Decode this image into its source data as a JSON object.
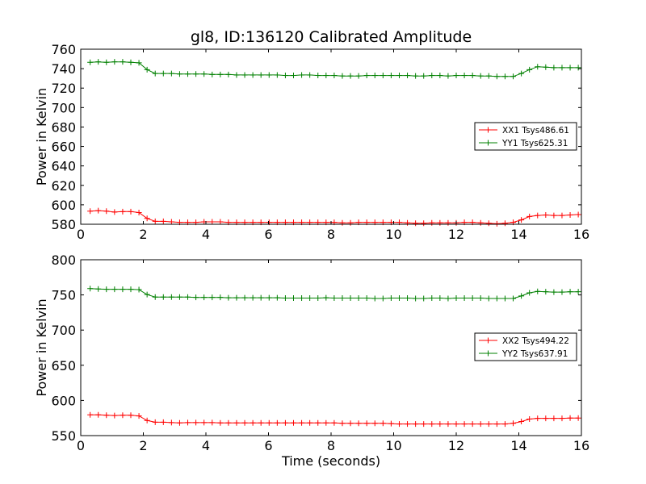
{
  "chart_data": [
    {
      "type": "line",
      "title": "gl8, ID:136120 Calibrated Amplitude",
      "xlabel": "",
      "ylabel": "Power in Kelvin",
      "xlim": [
        0,
        16
      ],
      "ylim": [
        580,
        760
      ],
      "xticks": [
        0,
        2,
        4,
        6,
        8,
        10,
        12,
        14,
        16
      ],
      "yticks": [
        580,
        600,
        620,
        640,
        660,
        680,
        700,
        720,
        740,
        760
      ],
      "x_tick_labels": [
        "0",
        "2",
        "4",
        "6",
        "8",
        "10",
        "12",
        "14",
        "16"
      ],
      "y_tick_labels": [
        "580",
        "600",
        "620",
        "640",
        "660",
        "680",
        "700",
        "720",
        "740",
        "760"
      ],
      "grid": false,
      "legend_position": "center-right",
      "x": [
        0.3,
        0.56,
        0.82,
        1.08,
        1.34,
        1.6,
        1.86,
        2.12,
        2.38,
        2.64,
        2.9,
        3.16,
        3.42,
        3.68,
        3.94,
        4.2,
        4.46,
        4.72,
        4.98,
        5.24,
        5.5,
        5.76,
        6.02,
        6.28,
        6.54,
        6.8,
        7.06,
        7.32,
        7.58,
        7.84,
        8.1,
        8.36,
        8.62,
        8.88,
        9.14,
        9.4,
        9.66,
        9.92,
        10.18,
        10.44,
        10.7,
        10.96,
        11.22,
        11.48,
        11.74,
        12.0,
        12.26,
        12.52,
        12.78,
        13.04,
        13.3,
        13.56,
        13.82,
        14.08,
        14.34,
        14.6,
        14.86,
        15.12,
        15.38,
        15.64,
        15.9
      ],
      "series": [
        {
          "name": "XX1 Tsys486.61",
          "color": "#ff0000",
          "values": [
            593.5,
            594.0,
            593.5,
            592.5,
            593.0,
            593.0,
            592.0,
            586.0,
            583.0,
            583.0,
            582.5,
            582.0,
            582.0,
            582.0,
            582.5,
            582.5,
            582.5,
            582.0,
            582.0,
            582.0,
            582.0,
            582.0,
            582.0,
            582.0,
            582.0,
            582.0,
            582.0,
            582.0,
            582.0,
            582.0,
            582.0,
            581.5,
            581.5,
            582.0,
            582.0,
            582.0,
            582.0,
            582.0,
            582.0,
            581.5,
            581.0,
            581.0,
            581.5,
            581.5,
            581.5,
            581.5,
            582.0,
            582.0,
            581.5,
            581.0,
            580.5,
            581.0,
            582.0,
            584.5,
            588.0,
            589.0,
            589.5,
            589.0,
            589.0,
            589.5,
            590.0
          ]
        },
        {
          "name": "YY1 Tsys625.31",
          "color": "#008000",
          "values": [
            746.5,
            747.0,
            746.5,
            747.0,
            747.0,
            746.5,
            746.0,
            739.0,
            735.0,
            735.0,
            735.0,
            734.5,
            734.5,
            734.5,
            734.5,
            734.0,
            734.0,
            734.0,
            733.5,
            733.5,
            733.5,
            733.5,
            733.5,
            733.5,
            733.0,
            733.0,
            733.5,
            733.5,
            733.0,
            733.0,
            733.0,
            732.5,
            732.5,
            732.5,
            733.0,
            733.0,
            733.0,
            733.0,
            733.0,
            733.0,
            732.5,
            732.5,
            733.0,
            733.0,
            732.5,
            733.0,
            733.0,
            733.0,
            732.5,
            732.5,
            732.0,
            732.0,
            732.0,
            735.0,
            739.0,
            742.0,
            741.5,
            741.0,
            741.0,
            741.0,
            741.0
          ]
        }
      ]
    },
    {
      "type": "line",
      "title": "",
      "xlabel": "Time (seconds)",
      "ylabel": "Power in Kelvin",
      "xlim": [
        0,
        16
      ],
      "ylim": [
        550,
        800
      ],
      "xticks": [
        0,
        2,
        4,
        6,
        8,
        10,
        12,
        14,
        16
      ],
      "yticks": [
        550,
        600,
        650,
        700,
        750,
        800
      ],
      "x_tick_labels": [
        "0",
        "2",
        "4",
        "6",
        "8",
        "10",
        "12",
        "14",
        "16"
      ],
      "y_tick_labels": [
        "550",
        "600",
        "650",
        "700",
        "750",
        "800"
      ],
      "grid": false,
      "legend_position": "center-right",
      "x": [
        0.3,
        0.56,
        0.82,
        1.08,
        1.34,
        1.6,
        1.86,
        2.12,
        2.38,
        2.64,
        2.9,
        3.16,
        3.42,
        3.68,
        3.94,
        4.2,
        4.46,
        4.72,
        4.98,
        5.24,
        5.5,
        5.76,
        6.02,
        6.28,
        6.54,
        6.8,
        7.06,
        7.32,
        7.58,
        7.84,
        8.1,
        8.36,
        8.62,
        8.88,
        9.14,
        9.4,
        9.66,
        9.92,
        10.18,
        10.44,
        10.7,
        10.96,
        11.22,
        11.48,
        11.74,
        12.0,
        12.26,
        12.52,
        12.78,
        13.04,
        13.3,
        13.56,
        13.82,
        14.08,
        14.34,
        14.6,
        14.86,
        15.12,
        15.38,
        15.64,
        15.9
      ],
      "series": [
        {
          "name": "XX2 Tsys494.22",
          "color": "#ff0000",
          "values": [
            579.5,
            579.5,
            579.0,
            578.5,
            579.0,
            579.0,
            578.0,
            571.5,
            569.0,
            569.0,
            568.5,
            568.0,
            568.5,
            568.5,
            568.5,
            568.5,
            568.0,
            568.0,
            568.0,
            568.0,
            568.0,
            568.0,
            568.0,
            568.0,
            568.0,
            568.0,
            568.0,
            568.0,
            568.0,
            568.0,
            568.0,
            567.5,
            567.5,
            567.5,
            567.5,
            567.5,
            567.5,
            567.0,
            566.5,
            566.5,
            566.5,
            566.5,
            566.5,
            566.5,
            566.5,
            566.5,
            566.5,
            566.5,
            566.5,
            566.5,
            566.5,
            566.5,
            567.5,
            570.0,
            573.5,
            574.5,
            574.5,
            574.5,
            574.5,
            575.0,
            575.0
          ]
        },
        {
          "name": "YY2 Tsys637.91",
          "color": "#008000",
          "values": [
            759.0,
            758.5,
            758.0,
            758.0,
            758.0,
            758.0,
            757.5,
            750.5,
            747.0,
            747.0,
            747.0,
            747.0,
            747.0,
            746.5,
            746.5,
            746.5,
            746.5,
            746.0,
            746.0,
            746.0,
            746.0,
            746.0,
            746.0,
            746.0,
            745.5,
            745.5,
            745.5,
            745.5,
            745.5,
            746.0,
            745.5,
            745.5,
            745.5,
            745.5,
            745.5,
            745.0,
            745.0,
            745.5,
            745.5,
            745.5,
            745.0,
            745.0,
            745.5,
            745.5,
            745.0,
            745.5,
            745.5,
            745.5,
            745.5,
            745.0,
            745.0,
            745.0,
            745.0,
            748.5,
            753.0,
            755.0,
            754.5,
            754.0,
            754.0,
            754.5,
            754.5
          ]
        }
      ]
    }
  ]
}
